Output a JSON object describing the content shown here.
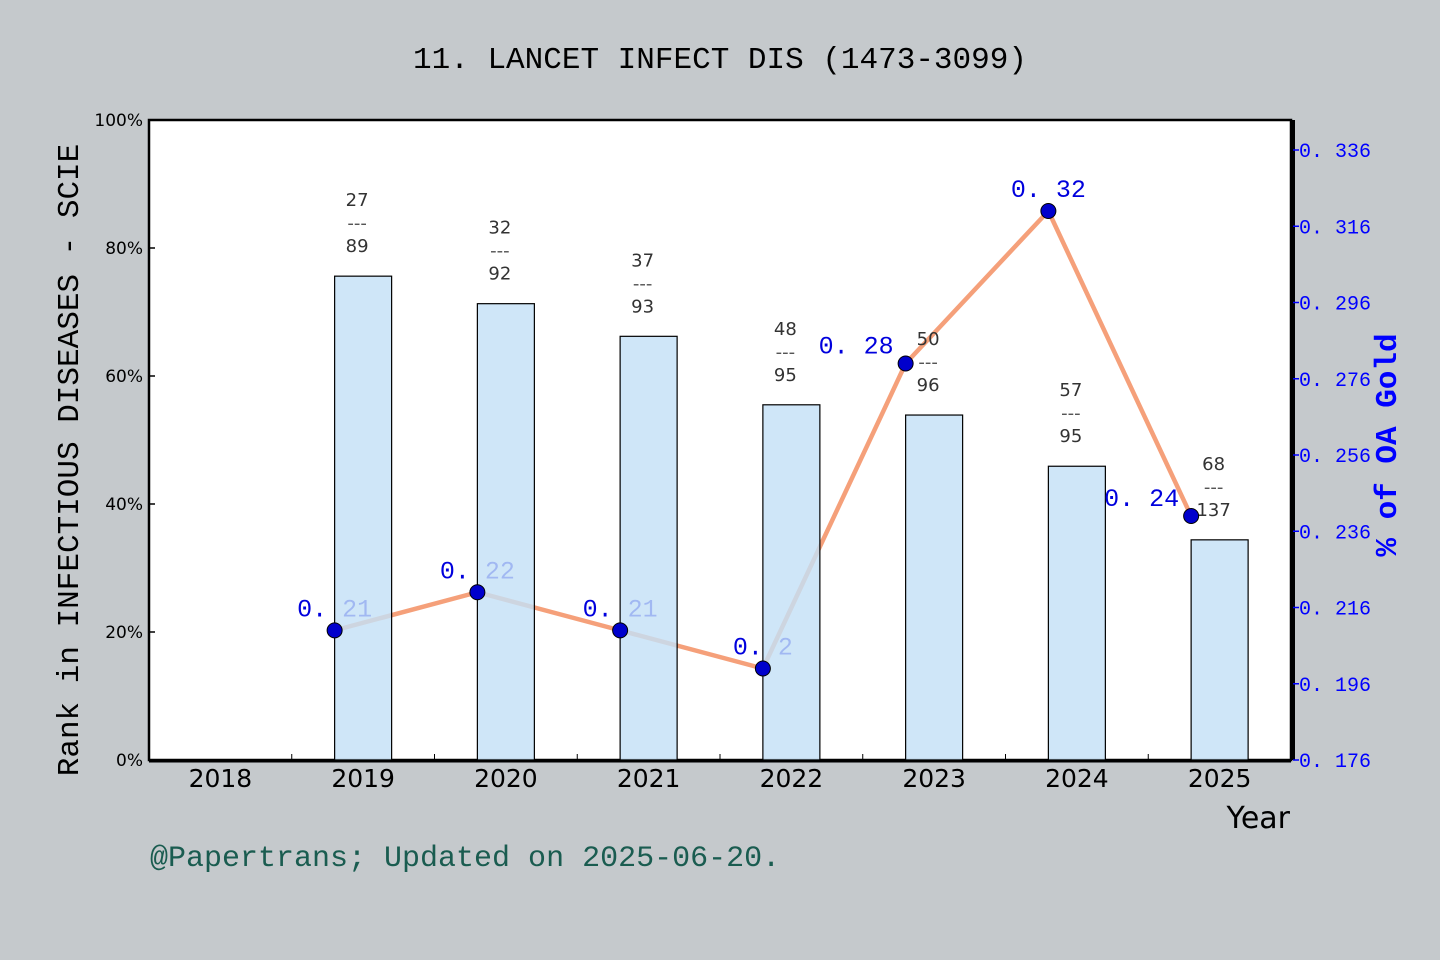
{
  "chart_data": {
    "type": "bar+line",
    "title": "11. LANCET INFECT DIS (1473-3099)",
    "xlabel": "Year",
    "ylabel": "Rank in INFECTIOUS DISEASES - SCIE",
    "y2label": "% of OA Gold",
    "categories": [
      "2018",
      "2019",
      "2020",
      "2021",
      "2022",
      "2023",
      "2024",
      "2025"
    ],
    "ylim": [
      0,
      100
    ],
    "yticks": [
      "0%",
      "20%",
      "40%",
      "60%",
      "80%",
      "100%"
    ],
    "y2lim": [
      0.176,
      0.336
    ],
    "y2ticks": [
      "0. 176",
      "0. 196",
      "0. 216",
      "0. 236",
      "0. 256",
      "0. 276",
      "0. 296",
      "0. 316",
      "0. 336"
    ],
    "grid": false,
    "bars": {
      "unit": "percent",
      "values": [
        null,
        75.6,
        71.3,
        66.2,
        55.5,
        53.9,
        45.9,
        34.4
      ],
      "rank_labels": [
        null,
        {
          "rank": "27",
          "sep": "---",
          "total": "89"
        },
        {
          "rank": "32",
          "sep": "---",
          "total": "92"
        },
        {
          "rank": "37",
          "sep": "---",
          "total": "93"
        },
        {
          "rank": "48",
          "sep": "---",
          "total": "95"
        },
        {
          "rank": "50",
          "sep": "---",
          "total": "96"
        },
        {
          "rank": "57",
          "sep": "---",
          "total": "95"
        },
        {
          "rank": "68",
          "sep": "---",
          "total": "137"
        }
      ],
      "color": "#c5e0f7"
    },
    "line": {
      "values": [
        null,
        0.21,
        0.22,
        0.21,
        0.2,
        0.28,
        0.32,
        0.24
      ],
      "labels": [
        null,
        "0. 21",
        "0. 22",
        "0. 21",
        "0. 2",
        "0. 28",
        "0. 32",
        "0. 24"
      ],
      "line_color": "#f5a07a",
      "marker_color": "#0000cc"
    },
    "axis2_color": "#0000ff"
  },
  "footer": "@Papertrans; Updated on 2025-06-20."
}
